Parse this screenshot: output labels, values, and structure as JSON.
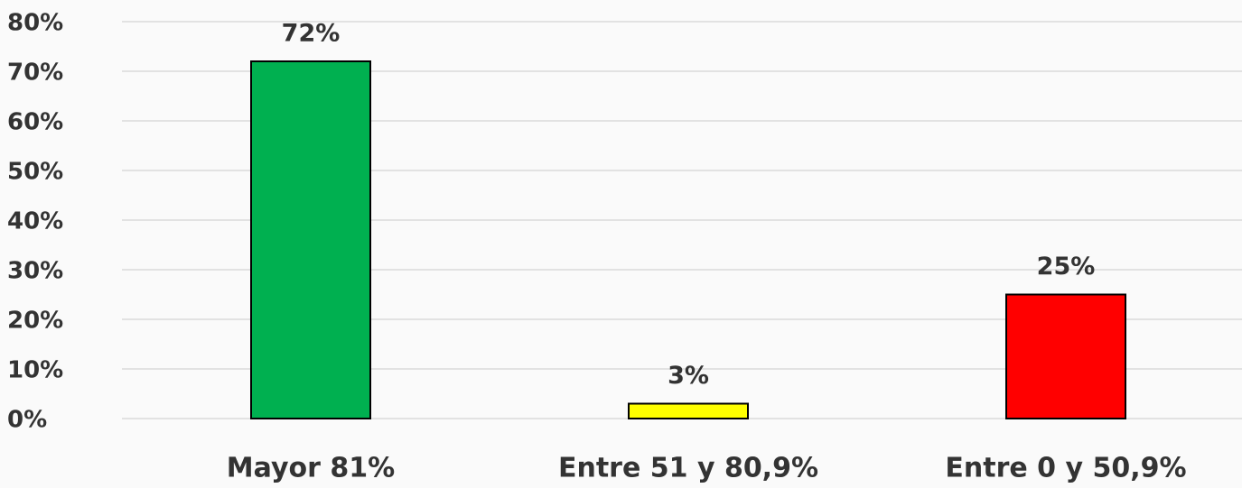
{
  "chart_data": {
    "type": "bar",
    "categories": [
      "Mayor 81%",
      "Entre 51 y 80,9%",
      "Entre 0 y 50,9%"
    ],
    "values": [
      72,
      3,
      25
    ],
    "value_labels": [
      "72%",
      "3%",
      "25%"
    ],
    "colors": [
      "#00b050",
      "#ffff00",
      "#ff0000"
    ],
    "ylim": [
      0,
      80
    ],
    "yticks": [
      {
        "value": 0,
        "label": "0%"
      },
      {
        "value": 10,
        "label": "10%"
      },
      {
        "value": 20,
        "label": "20%"
      },
      {
        "value": 30,
        "label": "30%"
      },
      {
        "value": 40,
        "label": "40%"
      },
      {
        "value": 50,
        "label": "50%"
      },
      {
        "value": 60,
        "label": "60%"
      },
      {
        "value": 70,
        "label": "70%"
      },
      {
        "value": 80,
        "label": "80%"
      }
    ],
    "grid": true
  }
}
